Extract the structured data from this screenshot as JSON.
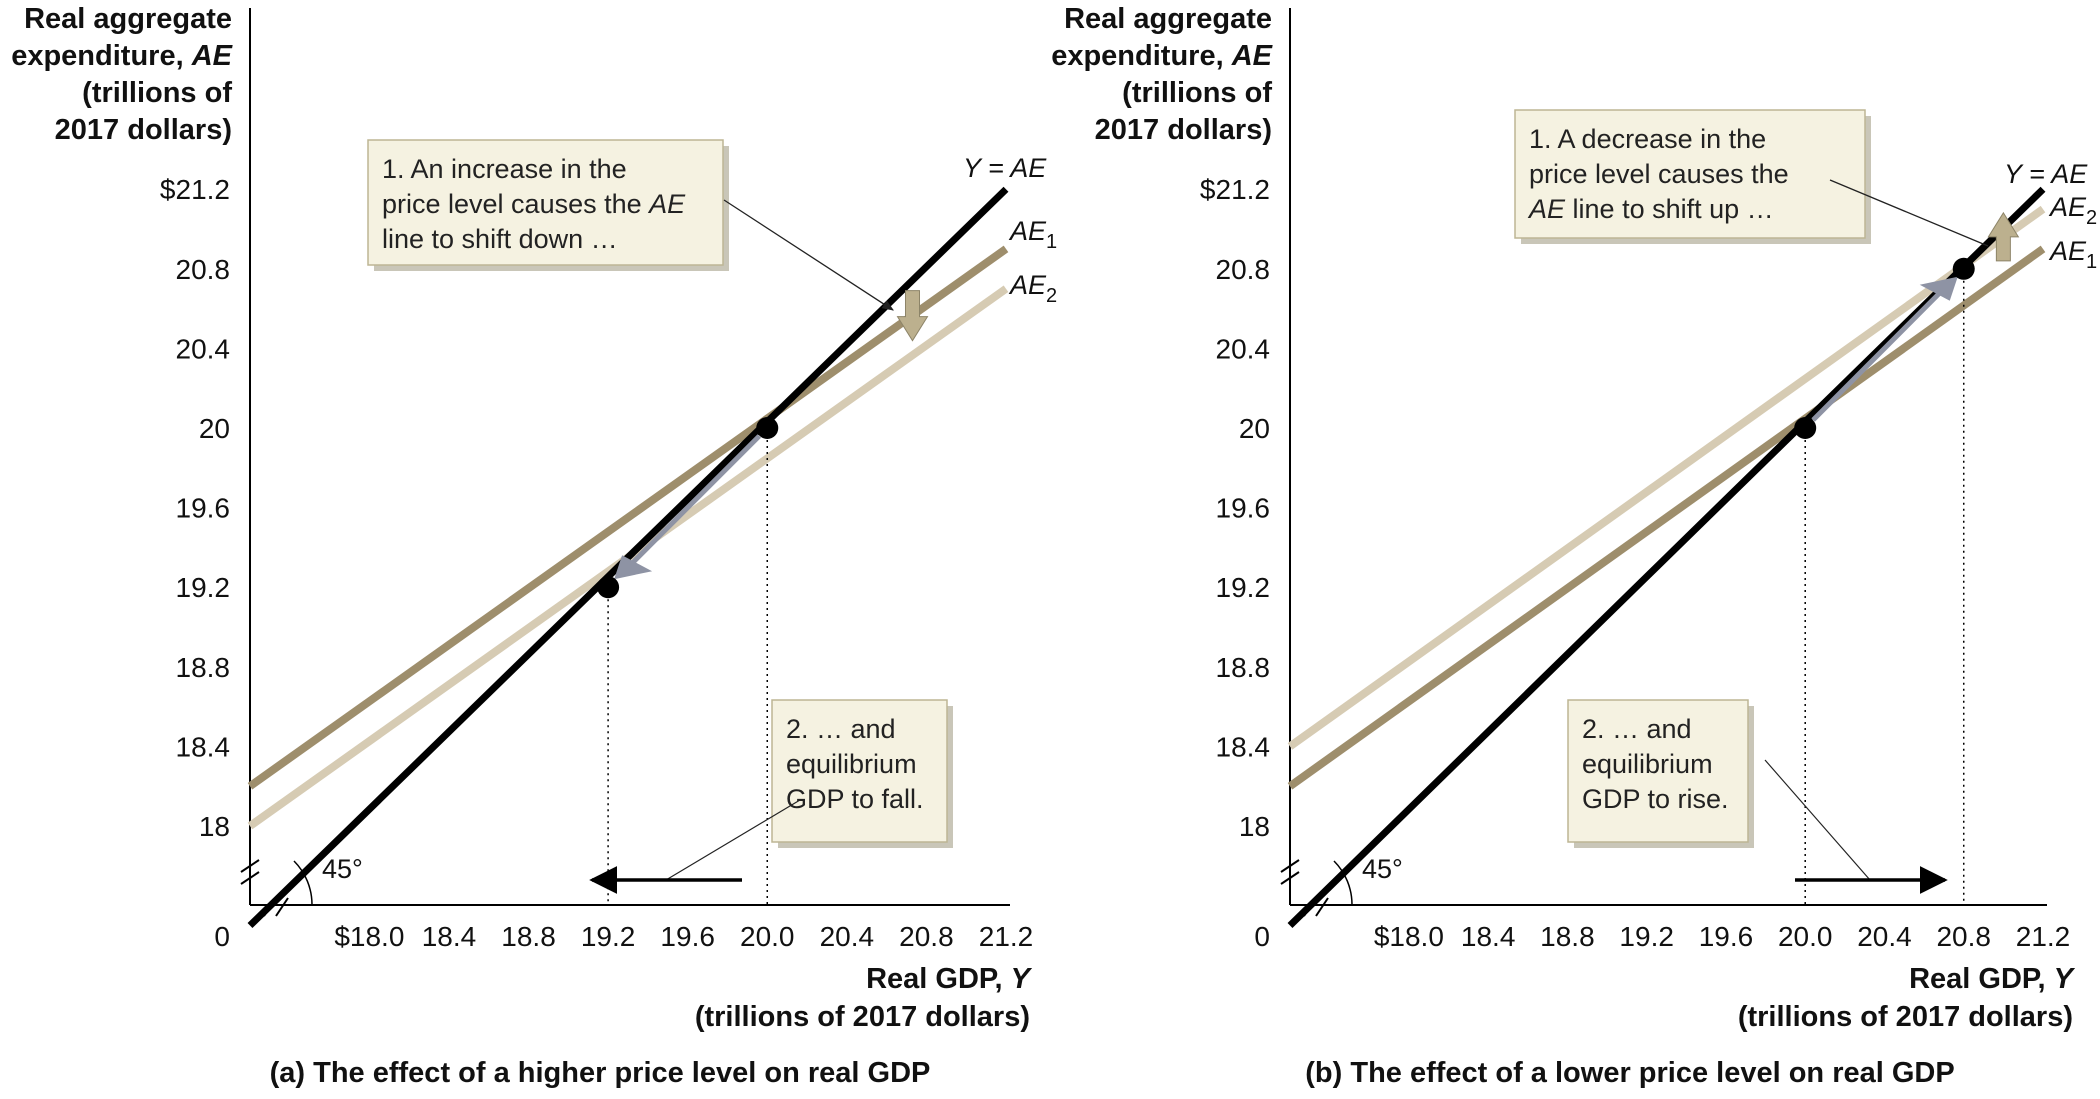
{
  "colors": {
    "line45": "#000000",
    "ae_dark": "#9e8e6c",
    "ae_light": "#d6cbb3",
    "box_fill": "#f5f2e1",
    "box_stroke": "#bdb594",
    "shift_arrow": "#bcb08e",
    "move_arrow": "#8e93a4"
  },
  "chart_data": [
    {
      "type": "line",
      "panel": "a",
      "caption": "(a) The effect of a higher price level on real GDP",
      "ylabel_lines": [
        "Real aggregate",
        "expenditure, AE",
        "(trillions of",
        "2017 dollars)"
      ],
      "xlabel_lines": [
        "Real GDP, Y",
        "(trillions of 2017 dollars)"
      ],
      "xlim": [
        17.4,
        21.2
      ],
      "ylim": [
        17.5,
        21.6
      ],
      "x_ticks": [
        "$18.0",
        "18.4",
        "18.8",
        "19.2",
        "19.6",
        "20.0",
        "20.4",
        "20.8",
        "21.2"
      ],
      "x_tick_values": [
        18.0,
        18.4,
        18.8,
        19.2,
        19.6,
        20.0,
        20.4,
        20.8,
        21.2
      ],
      "y_ticks": [
        "$21.2",
        "20.8",
        "20.4",
        "20",
        "19.6",
        "19.2",
        "18.8",
        "18.4",
        "18"
      ],
      "y_tick_values": [
        21.2,
        20.8,
        20.4,
        20.0,
        19.6,
        19.2,
        18.8,
        18.4,
        18.0
      ],
      "origin_label": "0",
      "angle_label": "45°",
      "series": [
        {
          "name": "Y = AE",
          "role": "line45",
          "x": [
            17.4,
            21.2
          ],
          "y": [
            17.5,
            21.2
          ]
        },
        {
          "name": "AE1",
          "role": "ae_dark",
          "x": [
            17.4,
            21.2
          ],
          "y": [
            18.2,
            20.9
          ]
        },
        {
          "name": "AE2",
          "role": "ae_light",
          "x": [
            17.4,
            21.2
          ],
          "y": [
            18.0,
            20.7
          ]
        }
      ],
      "series_labels": [
        {
          "main": "Y = AE",
          "sub": ""
        },
        {
          "main": "AE",
          "sub": "1"
        },
        {
          "main": "AE",
          "sub": "2"
        }
      ],
      "points": [
        {
          "x": 20.0,
          "y": 20.0
        },
        {
          "x": 19.2,
          "y": 19.2
        }
      ],
      "annotations": [
        {
          "id": "a-note1",
          "lines": [
            "1. An increase in the",
            "price level causes the AE",
            "line to shift down …"
          ]
        },
        {
          "id": "a-note2",
          "lines": [
            "2.  … and",
            "equilibrium",
            "GDP to fall."
          ]
        }
      ]
    },
    {
      "type": "line",
      "panel": "b",
      "caption": "(b) The effect of a lower price level on real GDP",
      "ylabel_lines": [
        "Real aggregate",
        "expenditure, AE",
        "(trillions of",
        "2017 dollars)"
      ],
      "xlabel_lines": [
        "Real GDP, Y",
        "(trillions of 2017 dollars)"
      ],
      "xlim": [
        17.4,
        21.2
      ],
      "ylim": [
        17.5,
        21.6
      ],
      "x_ticks": [
        "$18.0",
        "18.4",
        "18.8",
        "19.2",
        "19.6",
        "20.0",
        "20.4",
        "20.8",
        "21.2"
      ],
      "x_tick_values": [
        18.0,
        18.4,
        18.8,
        19.2,
        19.6,
        20.0,
        20.4,
        20.8,
        21.2
      ],
      "y_ticks": [
        "$21.2",
        "20.8",
        "20.4",
        "20",
        "19.6",
        "19.2",
        "18.8",
        "18.4",
        "18"
      ],
      "y_tick_values": [
        21.2,
        20.8,
        20.4,
        20.0,
        19.6,
        19.2,
        18.8,
        18.4,
        18.0
      ],
      "origin_label": "0",
      "angle_label": "45°",
      "series": [
        {
          "name": "Y = AE",
          "role": "line45",
          "x": [
            17.4,
            21.2
          ],
          "y": [
            17.5,
            21.2
          ]
        },
        {
          "name": "AE2",
          "role": "ae_light",
          "x": [
            17.4,
            21.2
          ],
          "y": [
            18.4,
            21.1
          ]
        },
        {
          "name": "AE1",
          "role": "ae_dark",
          "x": [
            17.4,
            21.2
          ],
          "y": [
            18.2,
            20.9
          ]
        }
      ],
      "series_labels": [
        {
          "main": "Y = AE",
          "sub": ""
        },
        {
          "main": "AE",
          "sub": "2"
        },
        {
          "main": "AE",
          "sub": "1"
        }
      ],
      "points": [
        {
          "x": 20.0,
          "y": 20.0
        },
        {
          "x": 20.8,
          "y": 20.8
        }
      ],
      "annotations": [
        {
          "id": "b-note1",
          "lines": [
            "1. A decrease in the",
            "price level causes the",
            "AE line to shift up …"
          ]
        },
        {
          "id": "b-note2",
          "lines": [
            "2.  … and",
            "equilibrium",
            "GDP to rise."
          ]
        }
      ]
    }
  ]
}
